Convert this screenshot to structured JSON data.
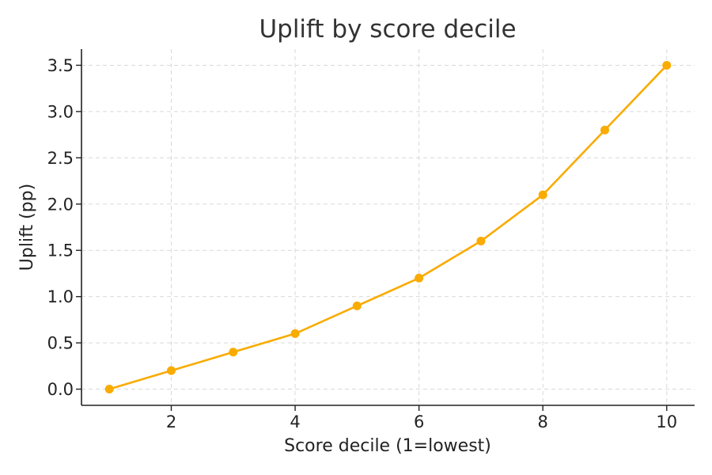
{
  "chart_data": {
    "type": "line",
    "title": "Uplift by score decile",
    "xlabel": "Score decile (1=lowest)",
    "ylabel": "Uplift (pp)",
    "x": [
      1,
      2,
      3,
      4,
      5,
      6,
      7,
      8,
      9,
      10
    ],
    "series": [
      {
        "values": [
          0.0,
          0.2,
          0.4,
          0.6,
          0.9,
          1.2,
          1.6,
          2.1,
          2.8,
          3.5
        ],
        "color": "#F9AB00"
      }
    ],
    "xlim": [
      0.55,
      10.45
    ],
    "ylim": [
      -0.175,
      3.675
    ],
    "xticks": [
      2,
      4,
      6,
      8,
      10
    ],
    "xtick_labels": [
      "2",
      "4",
      "6",
      "8",
      "10"
    ],
    "yticks": [
      0.0,
      0.5,
      1.0,
      1.5,
      2.0,
      2.5,
      3.0,
      3.5
    ],
    "ytick_labels": [
      "0.0",
      "0.5",
      "1.0",
      "1.5",
      "2.0",
      "2.5",
      "3.0",
      "3.5"
    ],
    "grid": true,
    "legend": "none",
    "marker": "circle"
  }
}
